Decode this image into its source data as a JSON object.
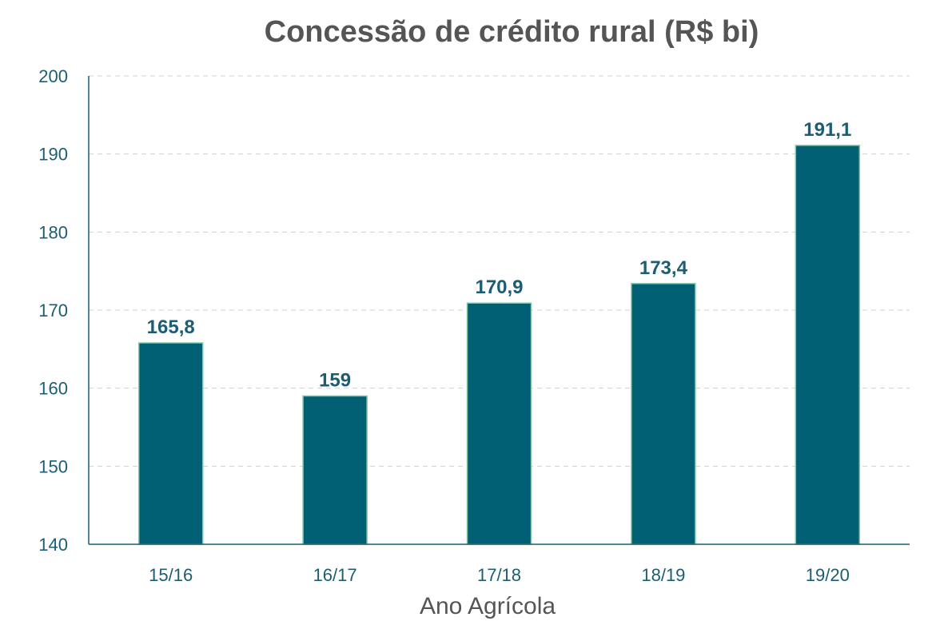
{
  "chart_data": {
    "type": "bar",
    "title": "Concessão de crédito rural (R$ bi)",
    "xlabel": "Ano Agrícola",
    "ylabel": "",
    "categories": [
      "15/16",
      "16/17",
      "17/18",
      "18/19",
      "19/20"
    ],
    "values": [
      165.8,
      159,
      170.9,
      173.4,
      191.1
    ],
    "data_labels": [
      "165,8",
      "159",
      "170,9",
      "173,4",
      "191,1"
    ],
    "ylim": [
      140,
      200
    ],
    "yticks": [
      140,
      150,
      160,
      170,
      180,
      190,
      200
    ],
    "grid": true,
    "legend": "none",
    "colors": {
      "bar": "#005f73",
      "bar_border": "#7fc8a0",
      "text": "#1d5d73",
      "grid": "#d0d0d0"
    }
  }
}
